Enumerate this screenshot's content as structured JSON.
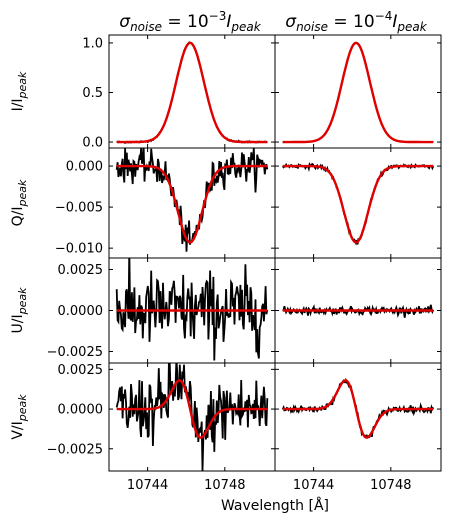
{
  "chart_data": {
    "type": "line",
    "xlabel": "Wavelength [Å]",
    "column_titles": [
      {
        "base": "σ",
        "sub": "noise",
        "mid": " = 10",
        "sup": "−3",
        "tail": "I",
        "tail_sub": "peak"
      },
      {
        "base": "σ",
        "sub": "noise",
        "mid": " = 10",
        "sup": "−4",
        "tail": "I",
        "tail_sub": "peak"
      }
    ],
    "x_ticks": [
      10744,
      10748
    ],
    "xlim": [
      10742.0,
      10750.6
    ],
    "line_center": 10746.2,
    "series_styles": {
      "observed": "#000000",
      "fit": "#e00000"
    },
    "rows": [
      {
        "ylabel": {
          "main": "I/I",
          "sub": "peak"
        },
        "ylim": [
          -0.06,
          1.08
        ],
        "ticks": [
          {
            "v": 0.0,
            "label": "0.0"
          },
          {
            "v": 0.5,
            "label": "0.5"
          },
          {
            "v": 1.0,
            "label": "1.0"
          }
        ],
        "profile": "gauss",
        "amp": 1.0,
        "sigma": 0.72,
        "noise": [
          0.004,
          0.0004
        ]
      },
      {
        "ylabel": {
          "main": "Q/I",
          "sub": "peak"
        },
        "ylim": [
          -0.0112,
          0.0022
        ],
        "ticks": [
          {
            "v": 0.0,
            "label": "0.000"
          },
          {
            "v": -0.005,
            "label": "−0.005"
          },
          {
            "v": -0.01,
            "label": "−0.010"
          }
        ],
        "profile": "gauss",
        "amp": -0.0093,
        "sigma": 0.62,
        "noise": [
          0.00095,
          0.00012
        ]
      },
      {
        "ylabel": {
          "main": "U/I",
          "sub": "peak"
        },
        "ylim": [
          -0.0032,
          0.0032
        ],
        "ticks": [
          {
            "v": 0.0025,
            "label": "0.0025"
          },
          {
            "v": 0.0,
            "label": "0.0000"
          },
          {
            "v": -0.0025,
            "label": "−0.0025"
          }
        ],
        "profile": "flat",
        "amp": 0.0,
        "sigma": 0.6,
        "noise": [
          0.00115,
          0.00011
        ]
      },
      {
        "ylabel": {
          "main": "V/I",
          "sub": "peak"
        },
        "ylim": [
          -0.0039,
          0.0029
        ],
        "ticks": [
          {
            "v": 0.0025,
            "label": "0.0025"
          },
          {
            "v": 0.0,
            "label": "0.0000"
          },
          {
            "v": -0.0025,
            "label": "−0.0025"
          }
        ],
        "profile": "dgauss",
        "amp": 0.0018,
        "sigma": 0.55,
        "noise": [
          0.00105,
          0.0001
        ]
      }
    ]
  }
}
